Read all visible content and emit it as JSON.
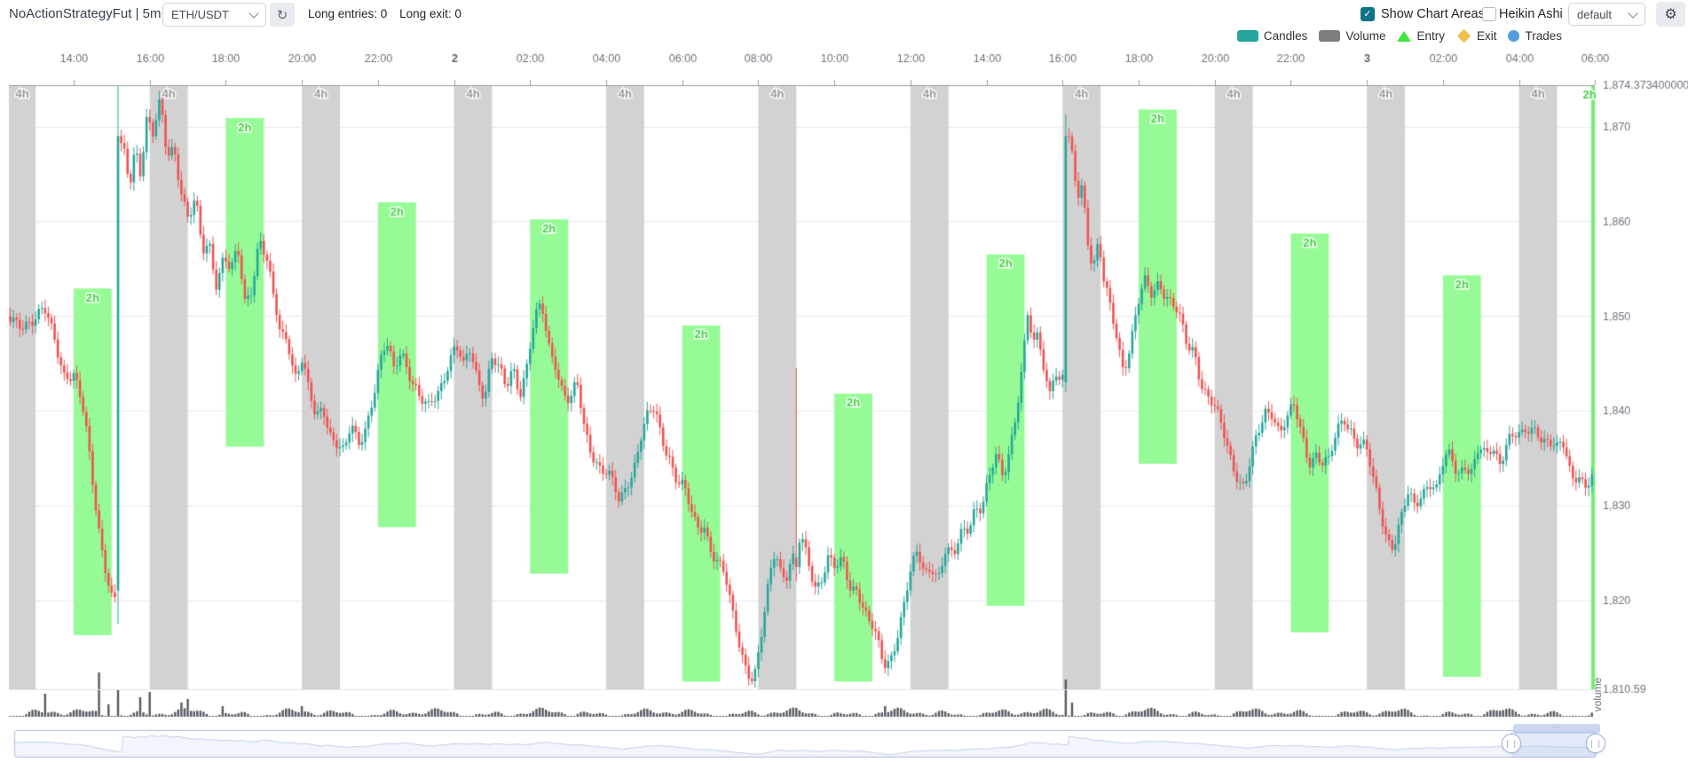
{
  "header": {
    "title": "NoActionStrategyFut | 5m",
    "pair_select": {
      "value": "ETH/USDT"
    },
    "long_entries": "Long entries: 0",
    "long_exit": "Long exit: 0",
    "show_chart_areas": {
      "label": "Show Chart Areas",
      "checked": true
    },
    "heikin_ashi": {
      "label": "Heikin Ashi",
      "checked": false
    },
    "plot_config_select": {
      "value": "default"
    }
  },
  "icons": {
    "check": "✓",
    "refresh": "↻",
    "gear": "⚙",
    "handle": "❘❘",
    "grip": "⋯"
  },
  "legend": {
    "items": [
      {
        "label": "Candles",
        "shape": "rect",
        "color": "#26A69A"
      },
      {
        "label": "Volume",
        "shape": "rect",
        "color": "#7d7d7d"
      },
      {
        "label": "Entry",
        "shape": "triangle",
        "color": "#3fe43f"
      },
      {
        "label": "Exit",
        "shape": "diamond",
        "color": "#efbe4e"
      },
      {
        "label": "Trades",
        "shape": "circle",
        "color": "#519fe0"
      }
    ]
  },
  "colors": {
    "candle_up": "#26A69A",
    "candle_down": "#EF5350",
    "band_4h_fill": "#d2d2d2",
    "band_4h_label": "#9b9b9b",
    "band_2h_fill": "#96fb96",
    "band_2h_line": "#6ef06e",
    "band_2h_label": "#49d249",
    "grid_line": "#e4e9f3",
    "axis_line": "#989ca4",
    "axis_text": "#70757d",
    "axis_text_bold": "#5d6066",
    "volume_bar": "#565b62",
    "nav_border": "#a9b7da",
    "nav_silhouette": "#c6d0ea"
  },
  "chart_data": {
    "type": "candlestick",
    "pair": "ETH/USDT",
    "timeframe": "5m",
    "volume_label": "volume",
    "x_axis": {
      "ticks": [
        [
          "14:00",
          0
        ],
        [
          "16:00",
          120
        ],
        [
          "18:00",
          240
        ],
        [
          "20:00",
          360
        ],
        [
          "22:00",
          480
        ],
        [
          "2",
          600
        ],
        [
          "02:00",
          720
        ],
        [
          "04:00",
          840
        ],
        [
          "06:00",
          960
        ],
        [
          "08:00",
          1080
        ],
        [
          "10:00",
          1200
        ],
        [
          "12:00",
          1320
        ],
        [
          "14:00",
          1440
        ],
        [
          "16:00",
          1560
        ],
        [
          "18:00",
          1680
        ],
        [
          "20:00",
          1800
        ],
        [
          "22:00",
          1920
        ],
        [
          "3",
          2040
        ],
        [
          "02:00",
          2160
        ],
        [
          "04:00",
          2280
        ],
        [
          "06:00",
          2400
        ]
      ],
      "bold_labels": [
        "2",
        "3"
      ]
    },
    "price_axis": {
      "top_label": "1,874.373400000",
      "bottom_label": "1,810.59",
      "max": 1874.3734,
      "min": 1810.59,
      "tick_labels": [
        "1,870",
        "1,860",
        "1,850",
        "1,840",
        "1,830",
        "1,820"
      ],
      "tick_values": [
        1870,
        1860,
        1850,
        1840,
        1830,
        1820
      ],
      "grid": true
    },
    "candle_interval_min": 5,
    "window": {
      "start_min": -100,
      "end_min": 2395
    },
    "bands_4h": {
      "label": "4h",
      "duration_min": 60,
      "starts": [
        -120,
        120,
        360,
        600,
        840,
        1080,
        1320,
        1560,
        1800,
        2040,
        2280
      ]
    },
    "bands_2h": {
      "label": "2h",
      "duration_min": 60,
      "areas": [
        {
          "start": 0,
          "high": 1852.9,
          "low": 1816.3
        },
        {
          "start": 240,
          "high": 1870.9,
          "low": 1836.2
        },
        {
          "start": 480,
          "high": 1862.0,
          "low": 1827.7
        },
        {
          "start": 720,
          "high": 1860.2,
          "low": 1822.8
        },
        {
          "start": 960,
          "high": 1849.0,
          "low": 1811.4
        },
        {
          "start": 1200,
          "high": 1841.8,
          "low": 1811.4
        },
        {
          "start": 1440,
          "high": 1856.5,
          "low": 1819.4
        },
        {
          "start": 1680,
          "high": 1871.8,
          "low": 1834.4
        },
        {
          "start": 1920,
          "high": 1858.7,
          "low": 1816.6
        },
        {
          "start": 2160,
          "high": 1854.3,
          "low": 1811.9
        },
        {
          "start": 2400,
          "high": 1874.3734,
          "low": 1810.59,
          "clipped": true
        }
      ]
    },
    "price_anchors": [
      [
        -102,
        1849
      ],
      [
        -74,
        1851
      ],
      [
        -46,
        1850
      ],
      [
        -29,
        1847
      ],
      [
        -15,
        1844
      ],
      [
        0,
        1843
      ],
      [
        17,
        1838
      ],
      [
        31,
        1832
      ],
      [
        41,
        1828
      ],
      [
        52,
        1824
      ],
      [
        63,
        1820
      ],
      [
        68,
        1821
      ],
      [
        70,
        1869
      ],
      [
        80,
        1867
      ],
      [
        88,
        1864
      ],
      [
        97,
        1869
      ],
      [
        105,
        1866
      ],
      [
        115,
        1871
      ],
      [
        125,
        1868
      ],
      [
        136,
        1871
      ],
      [
        147,
        1866
      ],
      [
        158,
        1868
      ],
      [
        169,
        1864
      ],
      [
        181,
        1860
      ],
      [
        192,
        1862
      ],
      [
        203,
        1857
      ],
      [
        214,
        1859
      ],
      [
        225,
        1855
      ],
      [
        237,
        1857
      ],
      [
        248,
        1854
      ],
      [
        259,
        1856
      ],
      [
        270,
        1851
      ],
      [
        281,
        1853
      ],
      [
        293,
        1858
      ],
      [
        304,
        1855
      ],
      [
        315,
        1851
      ],
      [
        326,
        1848
      ],
      [
        337,
        1849
      ],
      [
        349,
        1845
      ],
      [
        360,
        1846
      ],
      [
        371,
        1842
      ],
      [
        382,
        1839
      ],
      [
        393,
        1841
      ],
      [
        405,
        1838
      ],
      [
        416,
        1836
      ],
      [
        427,
        1834
      ],
      [
        438,
        1837
      ],
      [
        449,
        1836
      ],
      [
        461,
        1839
      ],
      [
        472,
        1842
      ],
      [
        483,
        1845
      ],
      [
        494,
        1847
      ],
      [
        505,
        1845
      ],
      [
        517,
        1848
      ],
      [
        525,
        1846
      ],
      [
        536,
        1843
      ],
      [
        547,
        1840
      ],
      [
        559,
        1839
      ],
      [
        570,
        1841
      ],
      [
        581,
        1843
      ],
      [
        592,
        1845
      ],
      [
        603,
        1846
      ],
      [
        615,
        1844
      ],
      [
        626,
        1847
      ],
      [
        637,
        1845
      ],
      [
        648,
        1843
      ],
      [
        659,
        1846
      ],
      [
        671,
        1844
      ],
      [
        682,
        1842
      ],
      [
        693,
        1845
      ],
      [
        704,
        1842
      ],
      [
        715,
        1844
      ],
      [
        727,
        1848
      ],
      [
        738,
        1850
      ],
      [
        749,
        1847
      ],
      [
        760,
        1846
      ],
      [
        771,
        1843
      ],
      [
        783,
        1841
      ],
      [
        794,
        1843
      ],
      [
        805,
        1839
      ],
      [
        816,
        1837
      ],
      [
        827,
        1835
      ],
      [
        838,
        1833
      ],
      [
        850,
        1831
      ],
      [
        861,
        1829
      ],
      [
        872,
        1832
      ],
      [
        883,
        1834
      ],
      [
        894,
        1837
      ],
      [
        906,
        1839
      ],
      [
        917,
        1840
      ],
      [
        928,
        1838
      ],
      [
        939,
        1837
      ],
      [
        950,
        1834
      ],
      [
        961,
        1832
      ],
      [
        972,
        1829
      ],
      [
        983,
        1827
      ],
      [
        995,
        1828
      ],
      [
        1006,
        1825
      ],
      [
        1017,
        1823
      ],
      [
        1028,
        1821
      ],
      [
        1039,
        1818
      ],
      [
        1051,
        1816
      ],
      [
        1062,
        1814
      ],
      [
        1073,
        1812.5
      ],
      [
        1082,
        1815
      ],
      [
        1091,
        1819
      ],
      [
        1099,
        1823
      ],
      [
        1107,
        1826
      ],
      [
        1115,
        1824
      ],
      [
        1124,
        1823
      ],
      [
        1132,
        1824
      ],
      [
        1140,
        1823.5
      ],
      [
        1146,
        1825
      ],
      [
        1158,
        1823
      ],
      [
        1169,
        1821
      ],
      [
        1180,
        1823
      ],
      [
        1191,
        1825
      ],
      [
        1203,
        1823
      ],
      [
        1214,
        1824
      ],
      [
        1225,
        1822
      ],
      [
        1236,
        1823
      ],
      [
        1247,
        1820
      ],
      [
        1259,
        1817
      ],
      [
        1270,
        1814
      ],
      [
        1278,
        1812
      ],
      [
        1287,
        1813
      ],
      [
        1298,
        1816
      ],
      [
        1309,
        1819
      ],
      [
        1320,
        1822
      ],
      [
        1331,
        1824
      ],
      [
        1343,
        1823
      ],
      [
        1354,
        1825
      ],
      [
        1365,
        1824
      ],
      [
        1376,
        1826
      ],
      [
        1388,
        1824
      ],
      [
        1399,
        1827
      ],
      [
        1410,
        1828
      ],
      [
        1421,
        1830
      ],
      [
        1432,
        1829
      ],
      [
        1444,
        1831
      ],
      [
        1455,
        1834
      ],
      [
        1466,
        1833
      ],
      [
        1477,
        1837
      ],
      [
        1488,
        1841
      ],
      [
        1497,
        1845
      ],
      [
        1505,
        1850
      ],
      [
        1514,
        1847
      ],
      [
        1522,
        1849
      ],
      [
        1530,
        1846
      ],
      [
        1539,
        1843
      ],
      [
        1547,
        1845
      ],
      [
        1556,
        1842
      ],
      [
        1563,
        1843
      ],
      [
        1565,
        1869
      ],
      [
        1574,
        1866
      ],
      [
        1583,
        1862
      ],
      [
        1591,
        1864
      ],
      [
        1600,
        1858
      ],
      [
        1608,
        1855
      ],
      [
        1617,
        1857
      ],
      [
        1625,
        1853
      ],
      [
        1634,
        1851
      ],
      [
        1645,
        1849
      ],
      [
        1656,
        1846
      ],
      [
        1667,
        1848
      ],
      [
        1678,
        1851
      ],
      [
        1690,
        1853
      ],
      [
        1701,
        1852
      ],
      [
        1712,
        1854
      ],
      [
        1723,
        1852
      ],
      [
        1735,
        1850
      ],
      [
        1746,
        1848
      ],
      [
        1757,
        1846
      ],
      [
        1768,
        1847
      ],
      [
        1779,
        1844
      ],
      [
        1791,
        1842
      ],
      [
        1802,
        1840
      ],
      [
        1813,
        1838
      ],
      [
        1824,
        1836
      ],
      [
        1836,
        1834
      ],
      [
        1847,
        1832
      ],
      [
        1858,
        1834
      ],
      [
        1869,
        1836
      ],
      [
        1880,
        1839
      ],
      [
        1892,
        1840
      ],
      [
        1903,
        1838
      ],
      [
        1914,
        1839
      ],
      [
        1925,
        1840
      ],
      [
        1937,
        1838
      ],
      [
        1948,
        1836
      ],
      [
        1959,
        1837
      ],
      [
        1970,
        1835
      ],
      [
        1981,
        1834
      ],
      [
        1993,
        1837
      ],
      [
        2004,
        1839
      ],
      [
        2015,
        1838
      ],
      [
        2026,
        1836
      ],
      [
        2038,
        1835
      ],
      [
        2049,
        1832
      ],
      [
        2060,
        1830
      ],
      [
        2071,
        1828
      ],
      [
        2082,
        1827
      ],
      [
        2094,
        1829
      ],
      [
        2105,
        1831
      ],
      [
        2116,
        1830
      ],
      [
        2127,
        1832
      ],
      [
        2138,
        1833
      ],
      [
        2150,
        1831
      ],
      [
        2161,
        1833
      ],
      [
        2172,
        1834
      ],
      [
        2183,
        1833
      ],
      [
        2194,
        1835
      ],
      [
        2206,
        1834
      ],
      [
        2217,
        1836
      ],
      [
        2228,
        1835
      ],
      [
        2239,
        1837
      ],
      [
        2250,
        1836
      ],
      [
        2262,
        1838
      ],
      [
        2273,
        1837
      ],
      [
        2284,
        1836
      ],
      [
        2295,
        1837
      ],
      [
        2307,
        1838
      ],
      [
        2318,
        1837
      ],
      [
        2329,
        1836
      ],
      [
        2340,
        1835
      ],
      [
        2351,
        1836
      ],
      [
        2363,
        1834
      ],
      [
        2374,
        1835
      ],
      [
        2385,
        1833
      ],
      [
        2397,
        1833
      ]
    ],
    "special_candles": [
      {
        "min": 70,
        "open": 1821,
        "high": 1874.3734,
        "low": 1817.5,
        "close": 1869
      },
      {
        "min": 1140,
        "open": 1824.5,
        "high": 1844.5,
        "low": 1822,
        "close": 1823.5
      },
      {
        "min": 1565,
        "open": 1843,
        "high": 1871.3,
        "low": 1842,
        "close": 1869
      }
    ],
    "volume_spikes": [
      [
        -45,
        26
      ],
      [
        40,
        50
      ],
      [
        55,
        14
      ],
      [
        70,
        30
      ],
      [
        105,
        22
      ],
      [
        120,
        28
      ],
      [
        170,
        16
      ],
      [
        180,
        20
      ],
      [
        235,
        12
      ],
      [
        360,
        12
      ],
      [
        1140,
        10
      ],
      [
        1280,
        12
      ],
      [
        1565,
        42
      ],
      [
        1575,
        16
      ]
    ]
  }
}
